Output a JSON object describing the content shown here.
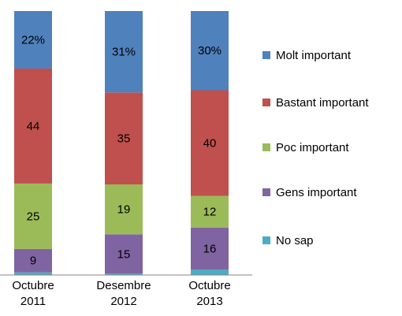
{
  "chart_data": {
    "type": "stacked_bar",
    "categories": [
      "Octubre 2011",
      "Desembre 2012",
      "Octubre 2013"
    ],
    "series": [
      {
        "name": "Molt important",
        "color": "#4f81bd",
        "values": [
          22,
          31,
          30
        ],
        "value_labels": [
          "22%",
          "31%",
          "30%"
        ]
      },
      {
        "name": "Bastant important",
        "color": "#c0504d",
        "values": [
          44,
          35,
          40
        ]
      },
      {
        "name": "Poc important",
        "color": "#9bbb59",
        "values": [
          25,
          19,
          12
        ]
      },
      {
        "name": "Gens important",
        "color": "#8064a2",
        "values": [
          9,
          15,
          16
        ]
      },
      {
        "name": "No sap",
        "color": "#4bacc6",
        "values": [
          1,
          0.5,
          2
        ]
      }
    ],
    "legend": "right"
  }
}
